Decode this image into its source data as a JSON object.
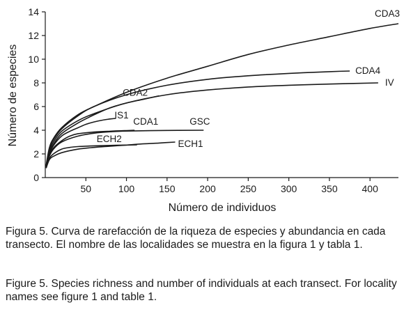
{
  "chart_data": {
    "type": "line",
    "xlabel": "Número de individuos",
    "ylabel": "Número de especies",
    "xlim": [
      0,
      435
    ],
    "ylim": [
      0,
      14
    ],
    "xticks": [
      50,
      100,
      150,
      200,
      250,
      300,
      350,
      400
    ],
    "yticks": [
      0,
      2,
      4,
      6,
      8,
      10,
      12,
      14
    ],
    "grid": false,
    "series": [
      {
        "name": "CDA3",
        "x": [
          1,
          5,
          10,
          20,
          40,
          60,
          100,
          150,
          200,
          250,
          300,
          350,
          400,
          435
        ],
        "y": [
          1.0,
          2.5,
          3.3,
          4.2,
          5.3,
          6.0,
          7.2,
          8.4,
          9.4,
          10.4,
          11.2,
          11.9,
          12.6,
          13.0
        ]
      },
      {
        "name": "CDA4",
        "x": [
          1,
          5,
          10,
          20,
          40,
          60,
          100,
          150,
          200,
          250,
          300,
          350,
          375
        ],
        "y": [
          1.0,
          2.4,
          3.2,
          4.1,
          5.2,
          6.0,
          7.0,
          7.8,
          8.3,
          8.6,
          8.8,
          8.95,
          9.0
        ]
      },
      {
        "name": "IV",
        "x": [
          1,
          5,
          10,
          20,
          40,
          60,
          100,
          150,
          200,
          250,
          300,
          350,
          410
        ],
        "y": [
          0.9,
          2.2,
          3.0,
          3.9,
          4.8,
          5.4,
          6.3,
          7.0,
          7.4,
          7.65,
          7.8,
          7.9,
          8.0
        ]
      },
      {
        "name": "CDA2",
        "x": [
          1,
          5,
          10,
          20,
          40,
          60,
          80,
          100,
          120,
          140
        ],
        "y": [
          0.9,
          2.1,
          2.8,
          3.7,
          4.6,
          5.3,
          5.9,
          6.3,
          6.6,
          6.9
        ]
      },
      {
        "name": "IS1",
        "x": [
          1,
          5,
          10,
          20,
          30,
          40,
          50,
          60,
          70,
          80,
          87
        ],
        "y": [
          0.9,
          2.0,
          2.7,
          3.5,
          3.9,
          4.2,
          4.5,
          4.7,
          4.85,
          4.95,
          5.0
        ]
      },
      {
        "name": "CDA1",
        "x": [
          1,
          5,
          10,
          20,
          30,
          40,
          60,
          80,
          100,
          110
        ],
        "y": [
          0.9,
          1.9,
          2.5,
          3.1,
          3.5,
          3.7,
          3.85,
          3.92,
          3.97,
          4.0
        ]
      },
      {
        "name": "GSC",
        "x": [
          1,
          5,
          10,
          20,
          40,
          60,
          80,
          100,
          150,
          195
        ],
        "y": [
          0.9,
          1.8,
          2.4,
          3.0,
          3.5,
          3.75,
          3.87,
          3.93,
          3.98,
          4.0
        ]
      },
      {
        "name": "ECH2",
        "x": [
          1,
          5,
          10,
          20,
          30,
          40,
          60,
          80,
          100,
          113
        ],
        "y": [
          0.8,
          1.6,
          2.0,
          2.4,
          2.55,
          2.62,
          2.68,
          2.72,
          2.75,
          2.77
        ]
      },
      {
        "name": "ECH1",
        "x": [
          1,
          5,
          10,
          20,
          40,
          60,
          80,
          100,
          120,
          140,
          160
        ],
        "y": [
          0.8,
          1.5,
          1.8,
          2.1,
          2.4,
          2.55,
          2.65,
          2.75,
          2.85,
          2.92,
          3.0
        ]
      }
    ]
  },
  "caption": {
    "es_head": "Figura",
    "es_text": " 5. Curva de rarefacción de la riqueza de especies y abundancia en cada transecto. El nombre de las localidades se muestra en la figura 1 y tabla 1.",
    "en_head": "Figure",
    "en_text": " 5. Species richness and number of individuals at each transect. For locality names see figure 1 and table 1."
  }
}
